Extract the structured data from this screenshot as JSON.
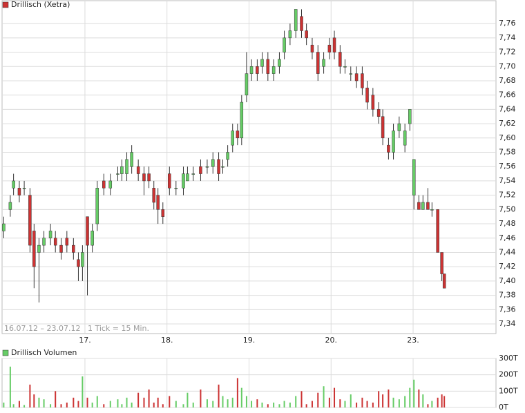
{
  "chart_data": [
    {
      "type": "candlestick",
      "title": "Drillisch (Xetra)",
      "annotation": "16.07.12 – 23.07.12   1 Tick = 15 Min.",
      "up_color": "#66cc66",
      "down_color": "#cc3333",
      "grid": true,
      "xlim": [
        -1.01,
        5.01
      ],
      "xticks": [
        {
          "value": 0,
          "label": "17."
        },
        {
          "value": 1,
          "label": "18."
        },
        {
          "value": 2,
          "label": "19."
        },
        {
          "value": 3,
          "label": "20."
        },
        {
          "value": 4,
          "label": "23."
        }
      ],
      "ylim": [
        7.3265,
        7.792
      ],
      "yticks": [
        {
          "value": 7.34,
          "label": "7,34"
        },
        {
          "value": 7.36,
          "label": "7,36"
        },
        {
          "value": 7.38,
          "label": "7,38"
        },
        {
          "value": 7.4,
          "label": "7,40"
        },
        {
          "value": 7.42,
          "label": "7,42"
        },
        {
          "value": 7.44,
          "label": "7,44"
        },
        {
          "value": 7.46,
          "label": "7,46"
        },
        {
          "value": 7.48,
          "label": "7,48"
        },
        {
          "value": 7.5,
          "label": "7,50"
        },
        {
          "value": 7.52,
          "label": "7,52"
        },
        {
          "value": 7.54,
          "label": "7,54"
        },
        {
          "value": 7.56,
          "label": "7,56"
        },
        {
          "value": 7.58,
          "label": "7,58"
        },
        {
          "value": 7.6,
          "label": "7,60"
        },
        {
          "value": 7.62,
          "label": "7,62"
        },
        {
          "value": 7.64,
          "label": "7,64"
        },
        {
          "value": 7.66,
          "label": "7,66"
        },
        {
          "value": 7.68,
          "label": "7,68"
        },
        {
          "value": 7.7,
          "label": "7,70"
        },
        {
          "value": 7.72,
          "label": "7,72"
        },
        {
          "value": 7.74,
          "label": "7,74"
        },
        {
          "value": 7.76,
          "label": "7,76"
        }
      ],
      "x": [
        -0.99,
        -0.91,
        -0.87,
        -0.8,
        -0.74,
        -0.67,
        -0.62,
        -0.56,
        -0.5,
        -0.42,
        -0.36,
        -0.29,
        -0.22,
        -0.14,
        -0.08,
        -0.03,
        0.03,
        0.09,
        0.15,
        0.23,
        0.31,
        0.4,
        0.45,
        0.51,
        0.57,
        0.65,
        0.72,
        0.78,
        0.84,
        0.89,
        0.95,
        1.03,
        1.11,
        1.2,
        1.25,
        1.32,
        1.41,
        1.49,
        1.56,
        1.63,
        1.68,
        1.74,
        1.8,
        1.86,
        1.91,
        1.97,
        2.03,
        2.1,
        2.16,
        2.23,
        2.3,
        2.37,
        2.43,
        2.5,
        2.57,
        2.64,
        2.7,
        2.77,
        2.84,
        2.91,
        2.98,
        3.04,
        3.11,
        3.17,
        3.24,
        3.31,
        3.38,
        3.44,
        3.51,
        3.58,
        3.63,
        3.7,
        3.76,
        3.83,
        3.9,
        3.96,
        4.01,
        4.07,
        4.12,
        4.18,
        4.23,
        4.3,
        4.35,
        4.38
      ],
      "open": [
        7.47,
        7.5,
        7.53,
        7.53,
        7.53,
        7.52,
        7.47,
        7.44,
        7.45,
        7.46,
        7.46,
        7.45,
        7.46,
        7.45,
        7.43,
        7.42,
        7.49,
        7.45,
        7.48,
        7.54,
        7.53,
        7.55,
        7.55,
        7.55,
        7.56,
        7.56,
        7.55,
        7.55,
        7.53,
        7.52,
        7.5,
        7.55,
        7.53,
        7.53,
        7.54,
        7.55,
        7.56,
        7.56,
        7.56,
        7.57,
        7.56,
        7.57,
        7.59,
        7.61,
        7.6,
        7.66,
        7.69,
        7.7,
        7.7,
        7.71,
        7.69,
        7.7,
        7.72,
        7.74,
        7.75,
        7.77,
        7.75,
        7.73,
        7.72,
        7.7,
        7.73,
        7.74,
        7.72,
        7.7,
        7.69,
        7.69,
        7.69,
        7.67,
        7.66,
        7.64,
        7.63,
        7.59,
        7.58,
        7.61,
        7.59,
        7.62,
        7.52,
        7.51,
        7.5,
        7.51,
        7.5,
        7.5,
        7.44,
        7.41
      ],
      "high": [
        7.49,
        7.52,
        7.55,
        7.54,
        7.54,
        7.53,
        7.48,
        7.46,
        7.47,
        7.48,
        7.47,
        7.46,
        7.47,
        7.46,
        7.44,
        7.45,
        7.49,
        7.48,
        7.54,
        7.55,
        7.55,
        7.56,
        7.57,
        7.58,
        7.59,
        7.57,
        7.56,
        7.56,
        7.54,
        7.53,
        7.51,
        7.56,
        7.54,
        7.56,
        7.56,
        7.56,
        7.57,
        7.57,
        7.58,
        7.58,
        7.57,
        7.59,
        7.62,
        7.62,
        7.66,
        7.72,
        7.71,
        7.71,
        7.72,
        7.72,
        7.71,
        7.72,
        7.75,
        7.76,
        7.78,
        7.78,
        7.76,
        7.74,
        7.73,
        7.72,
        7.74,
        7.75,
        7.73,
        7.71,
        7.7,
        7.7,
        7.7,
        7.68,
        7.67,
        7.65,
        7.64,
        7.6,
        7.62,
        7.63,
        7.62,
        7.64,
        7.57,
        7.52,
        7.52,
        7.53,
        7.51,
        7.5,
        7.44,
        7.41
      ],
      "low": [
        7.46,
        7.49,
        7.52,
        7.51,
        7.52,
        7.44,
        7.39,
        7.37,
        7.44,
        7.45,
        7.44,
        7.43,
        7.44,
        7.43,
        7.4,
        7.4,
        7.38,
        7.44,
        7.47,
        7.52,
        7.52,
        7.54,
        7.54,
        7.54,
        7.55,
        7.54,
        7.52,
        7.53,
        7.5,
        7.48,
        7.48,
        7.52,
        7.52,
        7.52,
        7.54,
        7.54,
        7.54,
        7.55,
        7.55,
        7.54,
        7.55,
        7.56,
        7.58,
        7.59,
        7.59,
        7.65,
        7.68,
        7.68,
        7.69,
        7.68,
        7.68,
        7.69,
        7.71,
        7.73,
        7.74,
        7.74,
        7.73,
        7.71,
        7.68,
        7.69,
        7.71,
        7.71,
        7.69,
        7.69,
        7.68,
        7.67,
        7.66,
        7.64,
        7.63,
        7.62,
        7.59,
        7.57,
        7.57,
        7.6,
        7.58,
        7.61,
        7.5,
        7.5,
        7.5,
        7.5,
        7.49,
        7.44,
        7.4,
        7.39
      ],
      "close": [
        7.48,
        7.51,
        7.54,
        7.52,
        7.53,
        7.45,
        7.42,
        7.45,
        7.46,
        7.47,
        7.45,
        7.44,
        7.45,
        7.44,
        7.42,
        7.44,
        7.45,
        7.47,
        7.53,
        7.53,
        7.54,
        7.55,
        7.56,
        7.57,
        7.58,
        7.55,
        7.54,
        7.54,
        7.51,
        7.5,
        7.49,
        7.53,
        7.53,
        7.55,
        7.55,
        7.55,
        7.55,
        7.56,
        7.57,
        7.55,
        7.56,
        7.58,
        7.61,
        7.6,
        7.65,
        7.69,
        7.7,
        7.69,
        7.71,
        7.69,
        7.7,
        7.71,
        7.74,
        7.75,
        7.78,
        7.75,
        7.74,
        7.72,
        7.69,
        7.71,
        7.72,
        7.72,
        7.7,
        7.7,
        7.69,
        7.68,
        7.67,
        7.65,
        7.64,
        7.63,
        7.6,
        7.58,
        7.61,
        7.62,
        7.61,
        7.64,
        7.57,
        7.5,
        7.51,
        7.5,
        7.5,
        7.44,
        7.41,
        7.39
      ]
    },
    {
      "type": "bar",
      "title": "Drillisch Volumen",
      "up_color": "#66cc66",
      "down_color": "#cc3333",
      "ylim": [
        0,
        300000
      ],
      "yticks": [
        {
          "value": 0,
          "label": "0T"
        },
        {
          "value": 100000,
          "label": "100T"
        },
        {
          "value": 200000,
          "label": "200T"
        },
        {
          "value": 300000,
          "label": "300T"
        }
      ],
      "values": [
        30000,
        250000,
        20000,
        40000,
        15000,
        140000,
        80000,
        60000,
        50000,
        20000,
        100000,
        20000,
        30000,
        60000,
        40000,
        190000,
        60000,
        30000,
        70000,
        20000,
        40000,
        50000,
        20000,
        60000,
        30000,
        90000,
        60000,
        110000,
        30000,
        60000,
        20000,
        70000,
        40000,
        20000,
        90000,
        30000,
        110000,
        50000,
        40000,
        140000,
        70000,
        50000,
        60000,
        180000,
        120000,
        70000,
        40000,
        50000,
        30000,
        20000,
        30000,
        20000,
        40000,
        30000,
        70000,
        100000,
        20000,
        40000,
        90000,
        130000,
        60000,
        120000,
        50000,
        40000,
        80000,
        30000,
        60000,
        40000,
        30000,
        100000,
        80000,
        110000,
        60000,
        50000,
        70000,
        120000,
        170000,
        110000,
        80000,
        20000,
        40000,
        60000,
        80000,
        70000
      ]
    }
  ]
}
